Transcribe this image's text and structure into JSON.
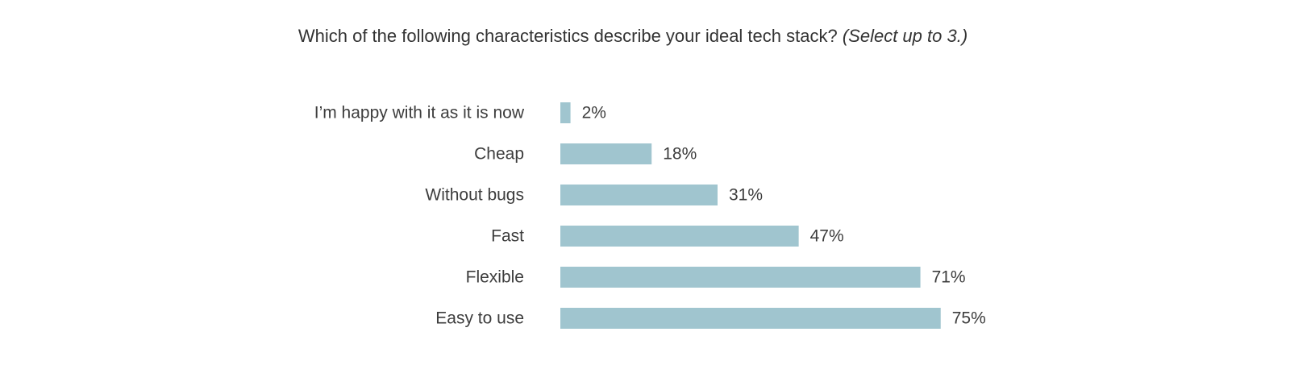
{
  "chart_data": {
    "type": "bar",
    "orientation": "horizontal",
    "title": "Which of the following characteristics describe your ideal tech stack?",
    "subtitle": "(Select up to 3.)",
    "categories": [
      "I’m happy with it as it is now",
      "Cheap",
      "Without bugs",
      "Fast",
      "Flexible",
      "Easy to use"
    ],
    "values": [
      2,
      18,
      31,
      47,
      71,
      75
    ],
    "value_labels": [
      "2%",
      "18%",
      "31%",
      "47%",
      "71%",
      "75%"
    ],
    "color": "#a0c5cf"
  }
}
